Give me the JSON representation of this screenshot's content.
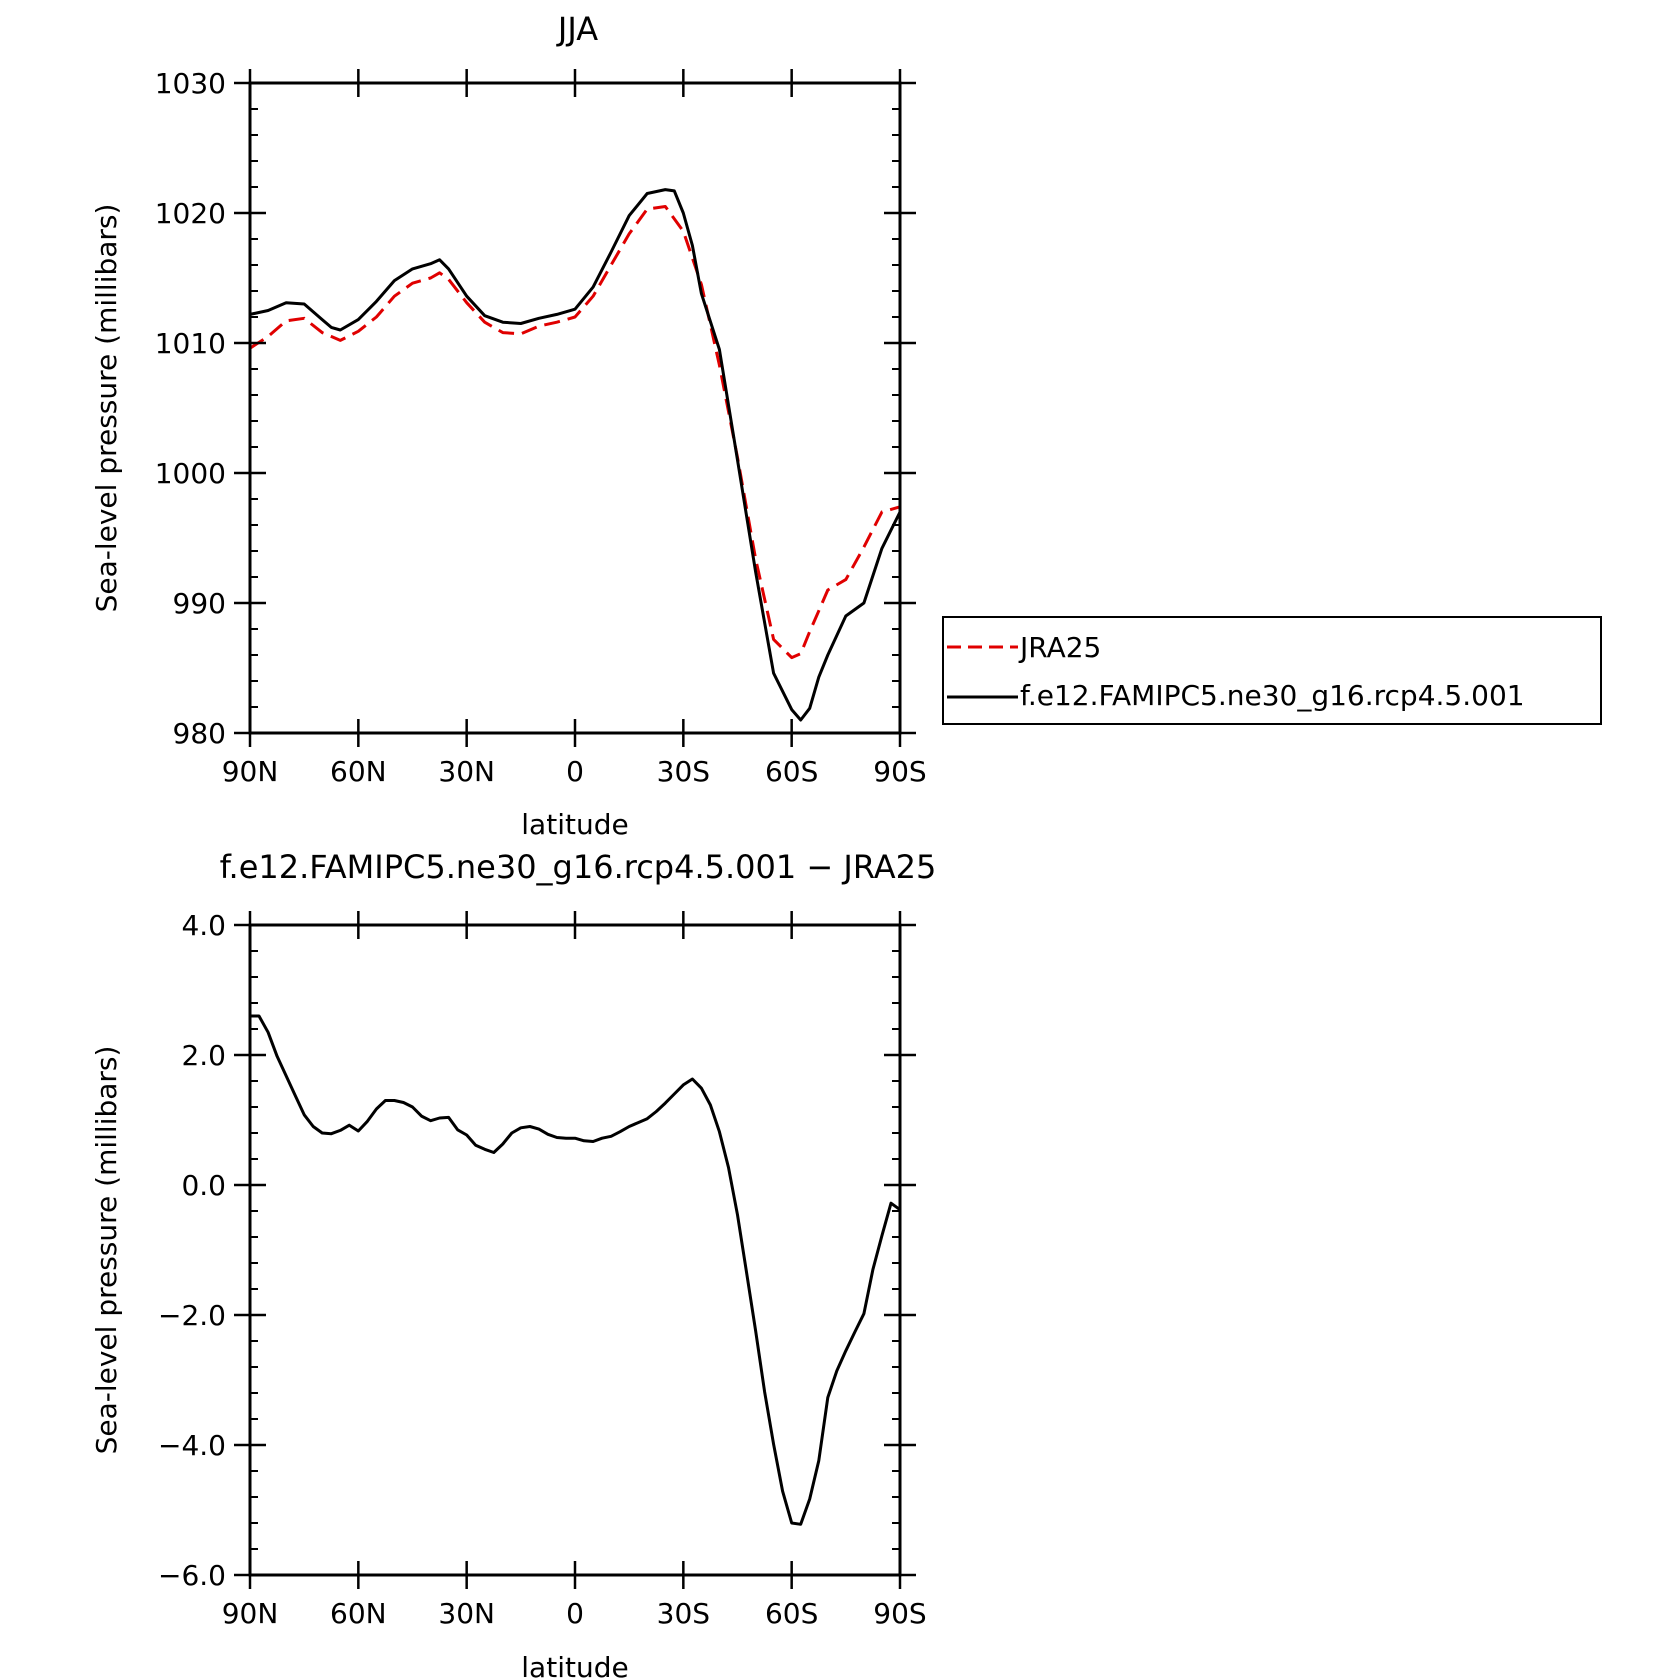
{
  "chart_data": [
    {
      "type": "line",
      "title": "JJA",
      "xlabel": "latitude",
      "ylabel": "Sea-level pressure (millibars)",
      "xlim": [
        90,
        -90
      ],
      "ylim": [
        980,
        1030
      ],
      "xticks": [
        90,
        60,
        30,
        0,
        -30,
        -60,
        -90
      ],
      "xtick_labels": [
        "90N",
        "60N",
        "30N",
        "0",
        "30S",
        "60S",
        "90S"
      ],
      "yticks": [
        980,
        990,
        1000,
        1010,
        1020,
        1030
      ],
      "ytick_labels": [
        "980",
        "990",
        "1000",
        "1010",
        "1020",
        "1030"
      ],
      "grid": false,
      "legend_position": "right",
      "series": [
        {
          "name": "JRA25",
          "color": "#e00000",
          "dash": "dashed",
          "x": [
            90,
            85,
            80,
            75,
            70,
            65,
            60,
            55,
            50,
            45,
            40,
            37.5,
            35,
            30,
            25,
            20,
            15,
            10,
            5,
            0,
            -5,
            -10,
            -15,
            -20,
            -25,
            -30,
            -35,
            -40,
            -45,
            -50,
            -55,
            -60,
            -62.5,
            -65,
            -67.5,
            -70,
            -75,
            -80,
            -85,
            -90
          ],
          "y": [
            1009.6,
            1010.5,
            1011.7,
            1011.9,
            1010.8,
            1010.2,
            1010.9,
            1012.0,
            1013.6,
            1014.6,
            1015.0,
            1015.4,
            1014.9,
            1013.1,
            1011.6,
            1010.8,
            1010.7,
            1011.3,
            1011.6,
            1012.0,
            1013.6,
            1016.0,
            1018.4,
            1020.3,
            1020.5,
            1018.6,
            1014.5,
            1008.3,
            1001.2,
            993.4,
            987.2,
            985.8,
            986.1,
            987.8,
            989.4,
            991.0,
            991.8,
            994.3,
            997.0,
            997.4
          ]
        },
        {
          "name": "f.e12.FAMIPC5.ne30_g16.rcp4.5.001",
          "color": "#000000",
          "dash": "solid",
          "x": [
            90,
            85,
            80,
            75,
            70,
            67.5,
            65,
            60,
            55,
            50,
            45,
            40,
            37.5,
            35,
            30,
            25,
            20,
            15,
            10,
            5,
            0,
            -5,
            -10,
            -15,
            -20,
            -25,
            -27.5,
            -30,
            -32.5,
            -35,
            -40,
            -45,
            -50,
            -55,
            -60,
            -62.5,
            -65,
            -67.5,
            -70,
            -75,
            -80,
            -85,
            -90
          ],
          "y": [
            1012.2,
            1012.5,
            1013.1,
            1013.0,
            1011.8,
            1011.2,
            1011.0,
            1011.8,
            1013.2,
            1014.8,
            1015.7,
            1016.1,
            1016.4,
            1015.7,
            1013.6,
            1012.1,
            1011.6,
            1011.5,
            1011.9,
            1012.2,
            1012.6,
            1014.3,
            1017.0,
            1019.8,
            1021.5,
            1021.8,
            1021.7,
            1020.0,
            1017.5,
            1013.8,
            1009.5,
            1001.0,
            992.4,
            984.6,
            981.8,
            981.0,
            981.9,
            984.3,
            986.0,
            989.0,
            990.0,
            994.2,
            997.0
          ]
        }
      ]
    },
    {
      "type": "line",
      "title": "f.e12.FAMIPC5.ne30_g16.rcp4.5.001 − JRA25",
      "xlabel": "latitude",
      "ylabel": "Sea-level pressure (millibars)",
      "xlim": [
        90,
        -90
      ],
      "ylim": [
        -6,
        4
      ],
      "xticks": [
        90,
        60,
        30,
        0,
        -30,
        -60,
        -90
      ],
      "xtick_labels": [
        "90N",
        "60N",
        "30N",
        "0",
        "30S",
        "60S",
        "90S"
      ],
      "yticks": [
        -6,
        -4,
        -2,
        0,
        2,
        4
      ],
      "ytick_labels": [
        "−6.0",
        "−4.0",
        "−2.0",
        "0.0",
        "2.0",
        "4.0"
      ],
      "grid": false,
      "series": [
        {
          "color": "#000000",
          "dash": "solid",
          "x": [
            90,
            87.5,
            85,
            82.5,
            80,
            77.5,
            75,
            72.5,
            70,
            67.5,
            65,
            62.5,
            60,
            57.5,
            55,
            52.5,
            50,
            47.5,
            45,
            42.5,
            40,
            37.5,
            35,
            32.5,
            30,
            27.5,
            25,
            22.5,
            20,
            17.5,
            15,
            12.5,
            10,
            7.5,
            5,
            2.5,
            0,
            -2.5,
            -5,
            -7.5,
            -10,
            -12.5,
            -15,
            -17.5,
            -20,
            -22.5,
            -25,
            -27.5,
            -30,
            -32.5,
            -35,
            -37.5,
            -40,
            -42.5,
            -45,
            -47.5,
            -50,
            -52.5,
            -55,
            -57.5,
            -60,
            -62.5,
            -65,
            -67.5,
            -70,
            -72.5,
            -75,
            -77.5,
            -80,
            -82.5,
            -85,
            -87.5,
            -90
          ],
          "y": [
            2.6,
            2.6,
            2.35,
            1.98,
            1.68,
            1.38,
            1.08,
            0.9,
            0.8,
            0.79,
            0.84,
            0.92,
            0.83,
            0.98,
            1.17,
            1.3,
            1.3,
            1.27,
            1.2,
            1.06,
            0.99,
            1.03,
            1.04,
            0.85,
            0.77,
            0.61,
            0.55,
            0.5,
            0.63,
            0.8,
            0.88,
            0.9,
            0.86,
            0.78,
            0.73,
            0.72,
            0.72,
            0.68,
            0.67,
            0.72,
            0.75,
            0.82,
            0.9,
            0.96,
            1.02,
            1.13,
            1.26,
            1.4,
            1.54,
            1.63,
            1.49,
            1.23,
            0.82,
            0.27,
            -0.46,
            -1.34,
            -2.24,
            -3.18,
            -3.99,
            -4.71,
            -5.2,
            -5.22,
            -4.83,
            -4.24,
            -3.27,
            -2.86,
            -2.55,
            -2.26,
            -1.98,
            -1.3,
            -0.78,
            -0.28,
            -0.38
          ]
        }
      ]
    }
  ]
}
